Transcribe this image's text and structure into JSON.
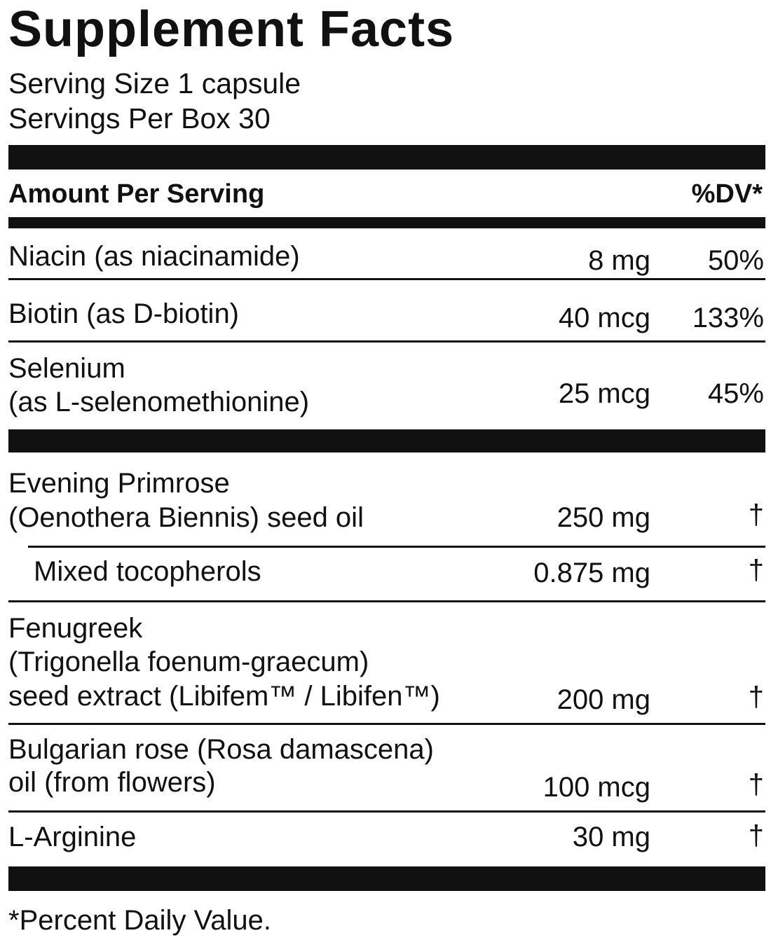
{
  "title": "Supplement Facts",
  "serving_size": "Serving Size 1 capsule",
  "servings_per": "Servings Per Box 30",
  "header": {
    "amount": "Amount Per Serving",
    "dv": "%DV*"
  },
  "vitamins": [
    {
      "name": [
        "Niacin (as niacinamide)"
      ],
      "amount": "8 mg",
      "dv": "50%"
    },
    {
      "name": [
        "Biotin (as D-biotin)"
      ],
      "amount": "40 mcg",
      "dv": "133%"
    },
    {
      "name": [
        "Selenium",
        "(as L-selenomethionine)"
      ],
      "amount": "25 mcg",
      "dv": "45%"
    }
  ],
  "others": [
    {
      "name": [
        "Evening Primrose",
        "(Oenothera Biennis) seed oil"
      ],
      "amount": "250 mg",
      "dv": "†"
    },
    {
      "name": [
        "Mixed tocopherols"
      ],
      "amount": "0.875 mg",
      "dv": "†"
    },
    {
      "name": [
        "Fenugreek",
        "(Trigonella foenum-graecum)",
        "seed extract (Libifem™ / Libifen™)"
      ],
      "amount": "200 mg",
      "dv": "†"
    },
    {
      "name": [
        "Bulgarian rose (Rosa damascena)",
        "oil (from flowers)"
      ],
      "amount": "100 mcg",
      "dv": "†"
    },
    {
      "name": [
        "L-Arginine"
      ],
      "amount": "30 mg",
      "dv": "†"
    }
  ],
  "footnote": "*Percent Daily Value."
}
